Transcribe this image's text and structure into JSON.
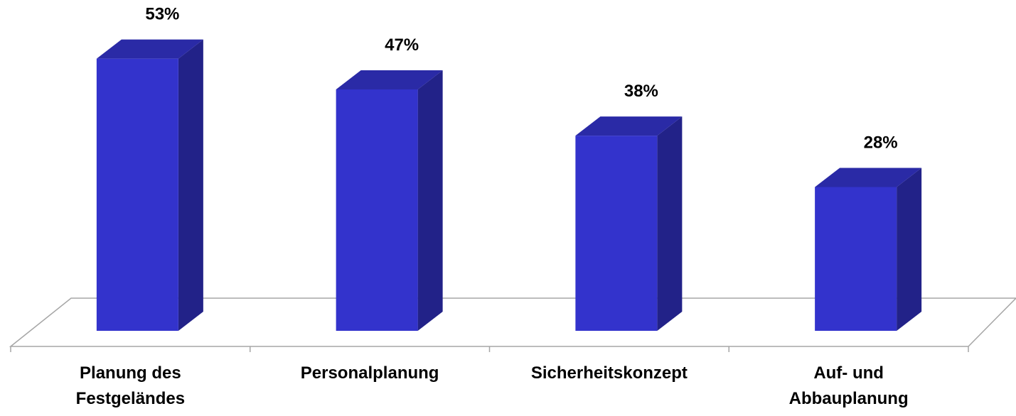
{
  "chart_data": {
    "type": "bar3d",
    "categories": [
      "Planung des\nFestgeländes",
      "Personalplanung",
      "Sicherheitskonzept",
      "Auf- und\nAbbauplanung"
    ],
    "values": [
      53,
      47,
      38,
      28
    ],
    "value_labels": [
      "53%",
      "47%",
      "38%",
      "28%"
    ],
    "color": "#3333cc",
    "ylim": [
      0,
      60
    ]
  }
}
